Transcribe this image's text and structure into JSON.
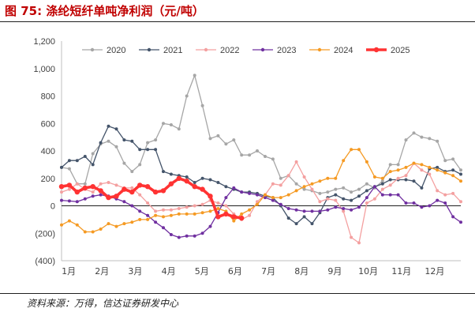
{
  "figure": {
    "number": "图 75:",
    "title": "涤纶短纤单吨净利润（元/吨）",
    "source": "资料来源：万得，信达证券研发中心"
  },
  "chart_data": {
    "type": "line",
    "title": "涤纶短纤单吨净利润（元/吨）",
    "xlabel": "",
    "ylabel": "",
    "x_unit": "week",
    "x_range": [
      1,
      52
    ],
    "xtick_labels": [
      "1月",
      "2月",
      "3月",
      "4月",
      "5月",
      "6月",
      "7月",
      "8月",
      "9月",
      "10月",
      "11月",
      "12月"
    ],
    "ylim": [
      -400,
      1200
    ],
    "ytick_labels": [
      "1,200",
      "1,000",
      "800",
      "600",
      "400",
      "200",
      "0",
      "(200)",
      "(400)"
    ],
    "yticks": [
      1200,
      1000,
      800,
      600,
      400,
      200,
      0,
      -200,
      -400
    ],
    "grid": false,
    "zero_line": true,
    "legend_position": "top-center",
    "series": [
      {
        "name": "2020",
        "color": "#a6a6a6",
        "marker": "circle",
        "x": [
          1,
          2,
          3,
          4,
          5,
          6,
          7,
          8,
          9,
          10,
          11,
          12,
          13,
          14,
          15,
          16,
          17,
          18,
          19,
          20,
          21,
          22,
          23,
          24,
          25,
          26,
          27,
          28,
          29,
          30,
          31,
          32,
          33,
          34,
          35,
          36,
          37,
          38,
          39,
          40,
          41,
          42,
          43,
          44,
          45,
          46,
          47,
          48,
          49,
          50,
          51,
          52
        ],
        "values": [
          280,
          270,
          160,
          160,
          380,
          450,
          470,
          430,
          310,
          250,
          300,
          460,
          480,
          600,
          590,
          560,
          800,
          950,
          730,
          490,
          510,
          450,
          480,
          370,
          370,
          400,
          360,
          340,
          200,
          220,
          160,
          120,
          110,
          90,
          100,
          120,
          130,
          100,
          120,
          160,
          130,
          180,
          300,
          300,
          480,
          530,
          500,
          490,
          470,
          330,
          340,
          260
        ]
      },
      {
        "name": "2021",
        "color": "#44546a",
        "marker": "circle",
        "x": [
          1,
          2,
          3,
          4,
          5,
          6,
          7,
          8,
          9,
          10,
          11,
          12,
          13,
          14,
          15,
          16,
          17,
          18,
          19,
          20,
          21,
          22,
          23,
          24,
          25,
          26,
          27,
          28,
          29,
          30,
          31,
          32,
          33,
          34,
          35,
          36,
          37,
          38,
          39,
          40,
          41,
          42,
          43,
          44,
          45,
          46,
          47,
          48,
          49,
          50,
          51,
          52
        ],
        "values": [
          280,
          330,
          330,
          360,
          300,
          460,
          580,
          560,
          480,
          470,
          410,
          410,
          410,
          250,
          230,
          220,
          210,
          170,
          200,
          190,
          170,
          140,
          120,
          100,
          100,
          90,
          70,
          60,
          0,
          -90,
          -130,
          -80,
          -130,
          -50,
          60,
          80,
          50,
          40,
          70,
          110,
          140,
          160,
          190,
          190,
          190,
          180,
          130,
          270,
          280,
          250,
          260,
          230
        ]
      },
      {
        "name": "2022",
        "color": "#f4a0a0",
        "marker": "circle",
        "x": [
          1,
          2,
          3,
          4,
          5,
          6,
          7,
          8,
          9,
          10,
          11,
          12,
          13,
          14,
          15,
          16,
          17,
          18,
          19,
          20,
          21,
          22,
          23,
          24,
          25,
          26,
          27,
          28,
          29,
          30,
          31,
          32,
          33,
          34,
          35,
          36,
          37,
          38,
          39,
          40,
          41,
          42,
          43,
          44,
          45,
          46,
          47,
          48,
          49,
          50,
          51,
          52
        ],
        "values": [
          100,
          120,
          160,
          120,
          100,
          160,
          170,
          150,
          130,
          130,
          80,
          20,
          -40,
          -30,
          -30,
          -20,
          -10,
          0,
          10,
          40,
          20,
          0,
          -60,
          -100,
          -70,
          30,
          80,
          160,
          150,
          220,
          320,
          210,
          120,
          30,
          50,
          40,
          -40,
          -230,
          -270,
          20,
          50,
          120,
          150,
          200,
          220,
          310,
          260,
          230,
          110,
          80,
          90,
          30
        ]
      },
      {
        "name": "2023",
        "color": "#7030a0",
        "marker": "circle",
        "x": [
          1,
          2,
          3,
          4,
          5,
          6,
          7,
          8,
          9,
          10,
          11,
          12,
          13,
          14,
          15,
          16,
          17,
          18,
          19,
          20,
          21,
          22,
          23,
          24,
          25,
          26,
          27,
          28,
          29,
          30,
          31,
          32,
          33,
          34,
          35,
          36,
          37,
          38,
          39,
          40,
          41,
          42,
          43,
          44,
          45,
          46,
          47,
          48,
          49,
          50,
          51,
          52
        ],
        "values": [
          40,
          35,
          30,
          50,
          70,
          80,
          70,
          50,
          30,
          0,
          -40,
          -70,
          -120,
          -160,
          -210,
          -230,
          -220,
          -220,
          -200,
          -150,
          -50,
          60,
          130,
          100,
          90,
          80,
          60,
          40,
          10,
          -20,
          -30,
          -40,
          -40,
          -40,
          -30,
          -10,
          -20,
          -30,
          -10,
          60,
          140,
          80,
          80,
          80,
          20,
          20,
          -10,
          0,
          40,
          20,
          -80,
          -120
        ]
      },
      {
        "name": "2024",
        "color": "#f59a23",
        "marker": "circle",
        "x": [
          1,
          2,
          3,
          4,
          5,
          6,
          7,
          8,
          9,
          10,
          11,
          12,
          13,
          14,
          15,
          16,
          17,
          18,
          19,
          20,
          21,
          22,
          23,
          24,
          25,
          26,
          27,
          28,
          29,
          30,
          31,
          32,
          33,
          34,
          35,
          36,
          37,
          38,
          39,
          40,
          41,
          42,
          43,
          44,
          45,
          46,
          47,
          48,
          49,
          50,
          51,
          52
        ],
        "values": [
          -140,
          -110,
          -140,
          -190,
          -190,
          -170,
          -130,
          -150,
          -130,
          -120,
          -100,
          -100,
          -70,
          -80,
          -70,
          -60,
          -60,
          -60,
          -50,
          -40,
          -20,
          -40,
          -110,
          -60,
          -30,
          10,
          80,
          60,
          60,
          80,
          110,
          140,
          160,
          180,
          200,
          200,
          330,
          410,
          410,
          320,
          210,
          200,
          250,
          260,
          280,
          310,
          300,
          280,
          260,
          240,
          220,
          180
        ]
      },
      {
        "name": "2025",
        "color": "#ff3333",
        "marker": "circle",
        "bold": true,
        "x": [
          1,
          2,
          3,
          4,
          5,
          6,
          7,
          8,
          9,
          10,
          11,
          12,
          13,
          14,
          15,
          16,
          17,
          18,
          19,
          20,
          21,
          22,
          23,
          24
        ],
        "values": [
          140,
          150,
          100,
          130,
          140,
          110,
          60,
          70,
          120,
          100,
          150,
          140,
          100,
          110,
          160,
          200,
          180,
          140,
          120,
          70,
          -80,
          -60,
          -80,
          -90
        ]
      }
    ]
  }
}
